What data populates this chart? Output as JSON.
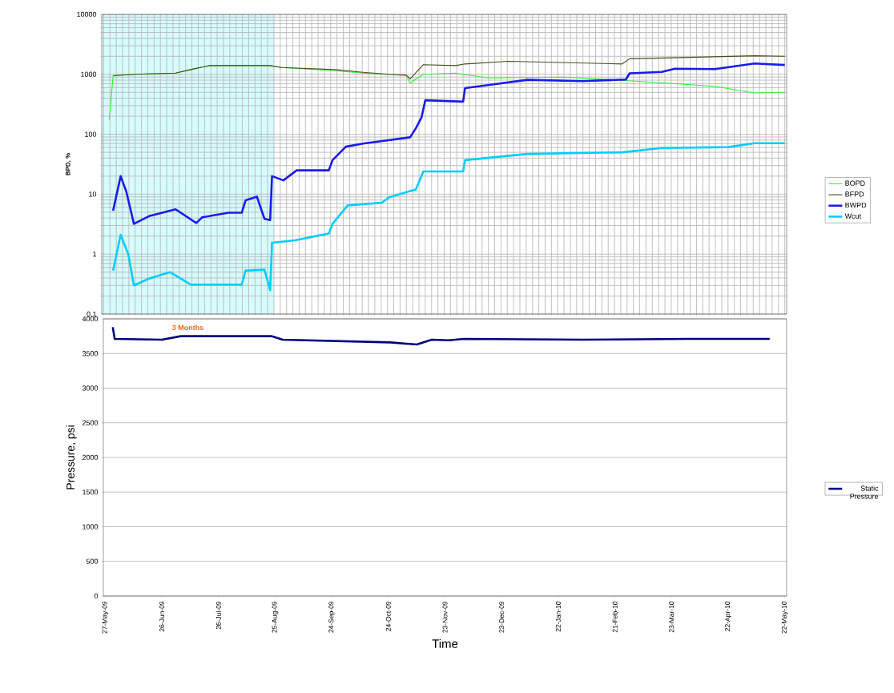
{
  "chart_data": [
    {
      "type": "line",
      "ylabel": "BPD, %",
      "log": "y",
      "grid": true,
      "legend": "right",
      "tick_labels": "y",
      "xlim": [
        "2009-05-26",
        "2010-05-23"
      ],
      "xticks": [
        {
          "value": "2009-05-27",
          "label": null
        },
        {
          "value": "2009-06-26",
          "label": null
        },
        {
          "value": "2009-07-26",
          "label": null
        },
        {
          "value": "2009-08-25",
          "label": null
        },
        {
          "value": "2009-09-24",
          "label": null
        },
        {
          "value": "2009-10-24",
          "label": null
        },
        {
          "value": "2009-11-23",
          "label": null
        },
        {
          "value": "2009-12-23",
          "label": null
        },
        {
          "value": "2010-01-22",
          "label": null
        },
        {
          "value": "2010-02-21",
          "label": null
        },
        {
          "value": "2010-03-23",
          "label": null
        },
        {
          "value": "2010-04-22",
          "label": null
        },
        {
          "value": "2010-05-22",
          "label": null
        }
      ],
      "ylim": [
        0.1,
        10000
      ],
      "yticks": [
        0.1,
        1,
        10,
        100,
        1000,
        10000
      ],
      "bands": [
        {
          "axis": "x",
          "from": "2009-05-26",
          "to": "2009-08-25",
          "label": "3 Months",
          "color": "#d6fcfc"
        }
      ],
      "series": [
        {
          "name": "BOPD",
          "color": "#33ee33",
          "x": [
            "2009-05-30",
            "2009-06-01",
            "2009-06-12",
            "2009-07-04",
            "2009-07-12",
            "2009-07-22",
            "2009-08-23",
            "2009-08-29",
            "2009-09-26",
            "2009-10-11",
            "2009-10-25",
            "2009-11-03",
            "2009-11-05",
            "2009-11-12",
            "2009-11-29",
            "2009-12-16",
            "2010-01-25",
            "2010-03-04",
            "2010-04-15",
            "2010-05-06",
            "2010-05-22"
          ],
          "values": [
            175,
            950,
            1000,
            1050,
            1200,
            1400,
            1400,
            1300,
            1150,
            1050,
            1000,
            950,
            720,
            1000,
            1050,
            870,
            900,
            770,
            630,
            490,
            500
          ]
        },
        {
          "name": "BFPD",
          "color": "#4a4a20",
          "x": [
            "2009-06-01",
            "2009-06-12",
            "2009-07-04",
            "2009-07-12",
            "2009-07-22",
            "2009-08-23",
            "2009-08-29",
            "2009-09-26",
            "2009-10-11",
            "2009-10-25",
            "2009-11-03",
            "2009-11-05",
            "2009-11-12",
            "2009-11-29",
            "2009-12-04",
            "2009-12-27",
            "2010-02-25",
            "2010-03-01",
            "2010-04-01",
            "2010-05-06",
            "2010-05-22"
          ],
          "values": [
            950,
            1000,
            1050,
            1200,
            1400,
            1400,
            1300,
            1200,
            1080,
            1000,
            970,
            840,
            1450,
            1400,
            1490,
            1650,
            1490,
            1820,
            1920,
            2040,
            2000
          ]
        },
        {
          "name": "BWPD",
          "color": "#1a1aee",
          "x": [
            "2009-06-01",
            "2009-06-05",
            "2009-06-08",
            "2009-06-12",
            "2009-06-20",
            "2009-07-04",
            "2009-07-15",
            "2009-07-18",
            "2009-08-01",
            "2009-08-08",
            "2009-08-10",
            "2009-08-16",
            "2009-08-20",
            "2009-08-23",
            "2009-08-24",
            "2009-08-30",
            "2009-09-06",
            "2009-09-23",
            "2009-09-25",
            "2009-10-02",
            "2009-10-11",
            "2009-11-05",
            "2009-11-08",
            "2009-11-11",
            "2009-11-13",
            "2009-12-03",
            "2009-12-04",
            "2009-12-16",
            "2010-01-06",
            "2010-02-04",
            "2010-02-27",
            "2010-03-01",
            "2010-03-18",
            "2010-03-25",
            "2010-04-15",
            "2010-05-06",
            "2010-05-22"
          ],
          "values": [
            5.3,
            20,
            11,
            3.2,
            4.3,
            5.6,
            3.3,
            4.1,
            4.9,
            4.9,
            7.9,
            9.1,
            3.9,
            3.7,
            20,
            17,
            25,
            25,
            37,
            62,
            70,
            89,
            126,
            190,
            370,
            350,
            590,
            660,
            810,
            770,
            820,
            1040,
            1100,
            1240,
            1220,
            1520,
            1430
          ]
        },
        {
          "name": "Wcut",
          "color": "#00ccff",
          "x": [
            "2009-06-01",
            "2009-06-05",
            "2009-06-09",
            "2009-06-12",
            "2009-06-20",
            "2009-07-01",
            "2009-07-12",
            "2009-08-08",
            "2009-08-10",
            "2009-08-20",
            "2009-08-23",
            "2009-08-24",
            "2009-09-05",
            "2009-09-23",
            "2009-09-25",
            "2009-10-03",
            "2009-10-21",
            "2009-10-25",
            "2009-11-08",
            "2009-11-12",
            "2009-12-03",
            "2009-12-04",
            "2010-01-06",
            "2010-02-25",
            "2010-03-18",
            "2010-04-22",
            "2010-05-06",
            "2010-05-22"
          ],
          "values": [
            0.53,
            2.1,
            1.0,
            0.3,
            0.39,
            0.5,
            0.31,
            0.31,
            0.53,
            0.55,
            0.25,
            1.55,
            1.7,
            2.2,
            3.2,
            6.5,
            7.2,
            8.9,
            12,
            24,
            24,
            37,
            47,
            50,
            59,
            61,
            71,
            71
          ]
        }
      ]
    },
    {
      "type": "line",
      "xlabel": "Time",
      "ylabel": "Pressure, psi",
      "grid": "y",
      "legend": "right",
      "xlim": [
        "2009-05-26",
        "2010-05-23"
      ],
      "xticks": [
        {
          "value": "2009-05-27",
          "label": "27-May-09"
        },
        {
          "value": "2009-06-26",
          "label": "26-Jun-09"
        },
        {
          "value": "2009-07-26",
          "label": "26-Jul-09"
        },
        {
          "value": "2009-08-25",
          "label": "25-Aug-09"
        },
        {
          "value": "2009-09-24",
          "label": "24-Sep-09"
        },
        {
          "value": "2009-10-24",
          "label": "24-Oct-09"
        },
        {
          "value": "2009-11-23",
          "label": "23-Nov-09"
        },
        {
          "value": "2009-12-23",
          "label": "23-Dec-09"
        },
        {
          "value": "2010-01-22",
          "label": "22-Jan-10"
        },
        {
          "value": "2010-02-21",
          "label": "21-Feb-10"
        },
        {
          "value": "2010-03-23",
          "label": "23-Mar-10"
        },
        {
          "value": "2010-04-22",
          "label": "22-Apr-10"
        },
        {
          "value": "2010-05-22",
          "label": "22-May-10"
        }
      ],
      "ylim": [
        0,
        4000
      ],
      "yticks": [
        0,
        500,
        1000,
        1500,
        2000,
        2500,
        3000,
        3500,
        4000
      ],
      "series": [
        {
          "name": "Static Pressure",
          "color": "#000080",
          "x": [
            "2009-05-31",
            "2009-06-01",
            "2009-06-26",
            "2009-07-06",
            "2009-08-23",
            "2009-08-29",
            "2009-10-25",
            "2009-11-08",
            "2009-11-16",
            "2009-11-25",
            "2009-12-03",
            "2010-02-04",
            "2010-04-01",
            "2010-05-14"
          ],
          "values": [
            3880,
            3710,
            3700,
            3750,
            3750,
            3700,
            3660,
            3630,
            3700,
            3690,
            3710,
            3700,
            3710,
            3710
          ]
        }
      ]
    }
  ]
}
